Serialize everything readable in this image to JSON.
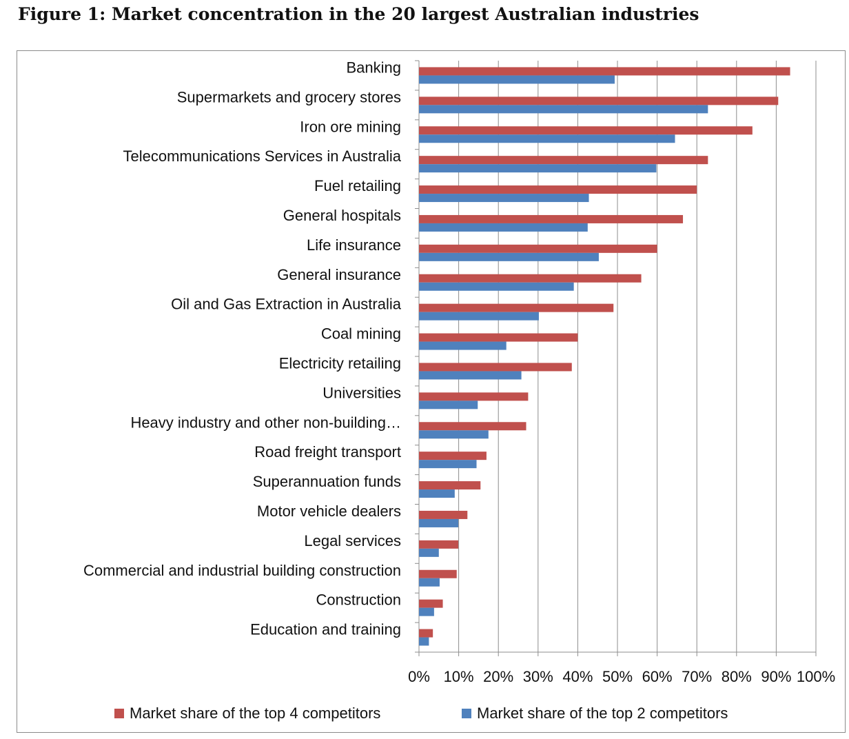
{
  "chart_data": {
    "type": "bar",
    "orientation": "horizontal",
    "title": "Figure 1: Market concentration in the 20 largest Australian industries",
    "categories": [
      "Banking",
      "Supermarkets and grocery stores",
      "Iron ore mining",
      "Telecommunications Services in Australia",
      "Fuel retailing",
      "General hospitals",
      "Life insurance",
      "General insurance",
      "Oil and Gas Extraction in Australia",
      "Coal mining",
      "Electricity retailing",
      "Universities",
      "Heavy industry and other non-building…",
      "Road freight transport",
      "Superannuation funds",
      "Motor vehicle dealers",
      "Legal services",
      "Commercial and industrial building construction",
      "Construction",
      "Education and training"
    ],
    "series": [
      {
        "name": "Market share of the top 4 competitors",
        "color": "#c0504d",
        "values": [
          93.5,
          90.5,
          84,
          72.8,
          70,
          66.5,
          60,
          56,
          49,
          40,
          38.5,
          27.5,
          27,
          17,
          15.5,
          12.2,
          9.9,
          9.5,
          6,
          3.5
        ]
      },
      {
        "name": "Market share of the top 2 competitors",
        "color": "#4f81bd",
        "values": [
          49.3,
          72.8,
          64.5,
          59.8,
          42.8,
          42.5,
          45.3,
          39,
          30.2,
          22,
          25.8,
          14.8,
          17.5,
          14.5,
          9,
          9.9,
          5,
          5.2,
          3.8,
          2.5
        ]
      }
    ],
    "xlim": [
      0,
      100
    ],
    "xticks": [
      "0%",
      "10%",
      "20%",
      "30%",
      "40%",
      "50%",
      "60%",
      "70%",
      "80%",
      "90%",
      "100%"
    ],
    "xlabel": "",
    "ylabel": "",
    "grid": true,
    "legend_position": "bottom"
  }
}
